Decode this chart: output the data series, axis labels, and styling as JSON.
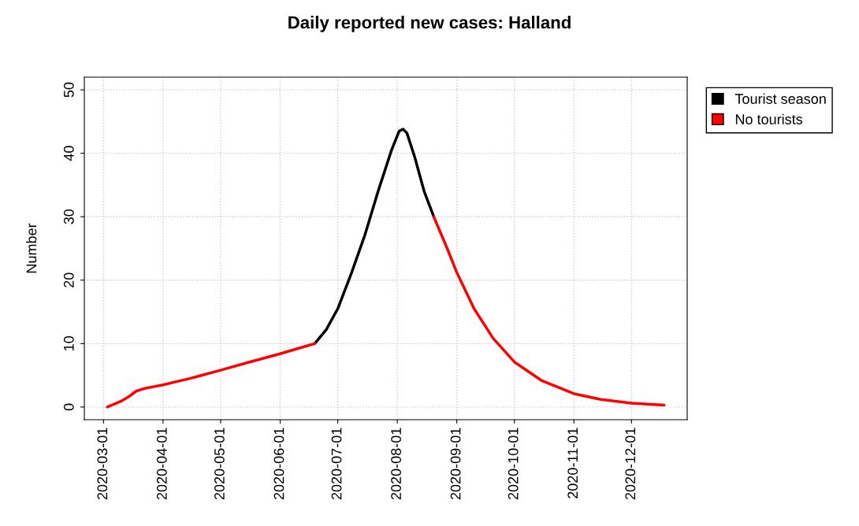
{
  "chart_data": {
    "type": "line",
    "title": "Daily reported new cases: Halland",
    "ylabel": "Number",
    "series": [
      {
        "name": "Tourist season",
        "color": "#000000",
        "x": [
          "2020-06-19",
          "2020-06-25",
          "2020-07-01",
          "2020-07-08",
          "2020-07-15",
          "2020-07-22",
          "2020-07-29",
          "2020-08-02",
          "2020-08-04",
          "2020-08-06",
          "2020-08-10",
          "2020-08-15",
          "2020-08-20"
        ],
        "values": [
          10,
          12.2,
          15.5,
          21,
          27,
          34,
          40.5,
          43.5,
          43.8,
          43.2,
          39.5,
          34,
          30
        ]
      },
      {
        "name": "No tourists",
        "color": "#ff0000",
        "x": [
          "2020-03-03",
          "2020-03-10",
          "2020-03-14",
          "2020-03-18",
          "2020-03-22",
          "2020-03-27",
          "2020-04-01",
          "2020-04-15",
          "2020-05-01",
          "2020-05-15",
          "2020-06-01",
          "2020-06-10",
          "2020-06-19"
        ],
        "values": [
          0,
          0.9,
          1.6,
          2.5,
          2.9,
          3.2,
          3.5,
          4.5,
          5.8,
          7,
          8.4,
          9.2,
          10
        ]
      },
      {
        "color": "#ff0000",
        "x": [
          "2020-08-20",
          "2020-08-27",
          "2020-09-01",
          "2020-09-10",
          "2020-09-20",
          "2020-10-01",
          "2020-10-15",
          "2020-11-01",
          "2020-11-15",
          "2020-12-01",
          "2020-12-18"
        ],
        "values": [
          30,
          25,
          21.2,
          15.5,
          10.8,
          7.1,
          4.2,
          2.1,
          1.2,
          0.6,
          0.3
        ]
      }
    ],
    "xlim": [
      "2020-02-20",
      "2020-12-30"
    ],
    "xticks": [
      "2020-03-01",
      "2020-04-01",
      "2020-05-01",
      "2020-06-01",
      "2020-07-01",
      "2020-08-01",
      "2020-09-01",
      "2020-10-01",
      "2020-11-01",
      "2020-12-01"
    ],
    "ylim": [
      -2,
      52
    ],
    "yticks": [
      0,
      10,
      20,
      30,
      40,
      50
    ],
    "grid": true,
    "legend": "right",
    "line_style": "solid",
    "marker": "none"
  }
}
